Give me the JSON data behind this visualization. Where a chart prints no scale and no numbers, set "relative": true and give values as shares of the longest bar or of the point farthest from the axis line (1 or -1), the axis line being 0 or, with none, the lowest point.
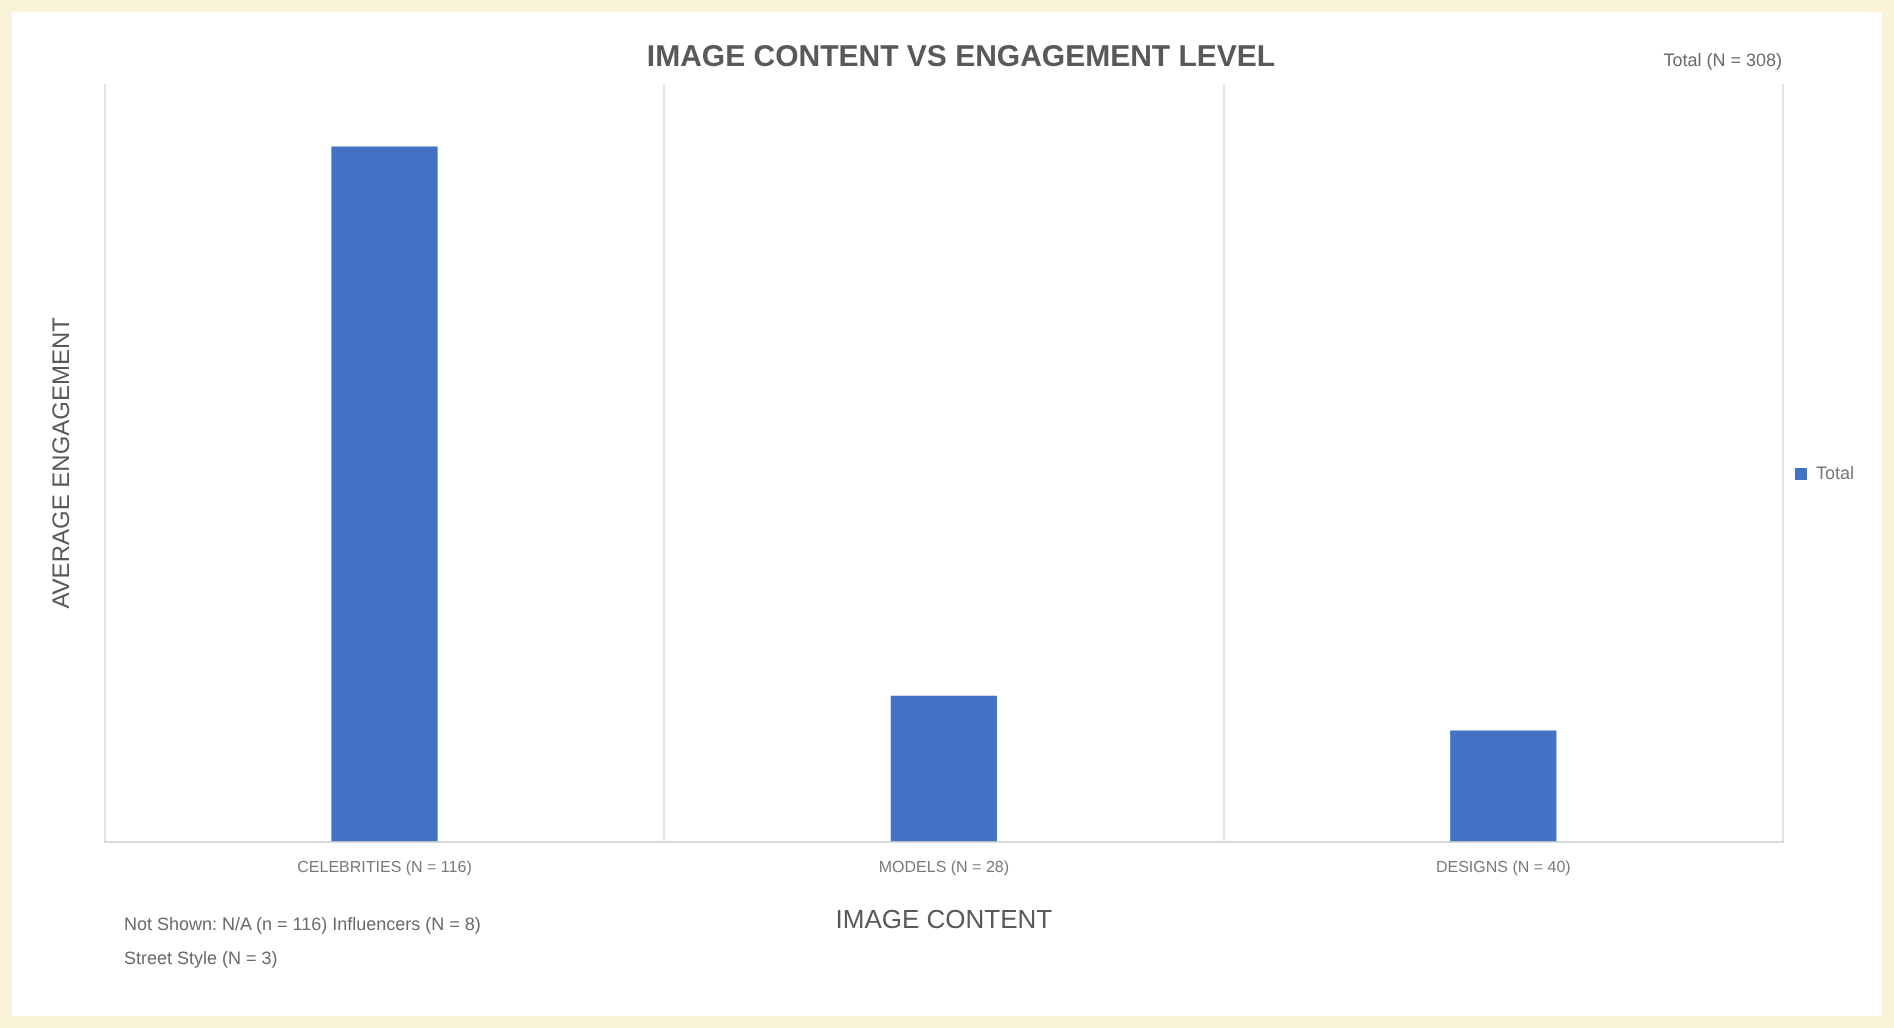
{
  "chart_data": {
    "type": "bar",
    "title": "IMAGE CONTENT VS ENGAGEMENT LEVEL",
    "xlabel": "IMAGE CONTENT",
    "ylabel": "AVERAGE ENGAGEMENT",
    "categories": [
      "CELEBRITIES (N = 116)",
      "MODELS (N = 28)",
      "DESIGNS (N = 40)"
    ],
    "series": [
      {
        "name": "Total",
        "color": "#4472c4",
        "values": [
          1,
          0.21,
          0.16
        ]
      }
    ],
    "relative": true,
    "grid": "x",
    "legend": "right",
    "annotations": [
      "Total (N = 308)",
      "Not Shown: N/A (n = 116) Influencers (N = 8) Street Style (N = 3)"
    ]
  }
}
